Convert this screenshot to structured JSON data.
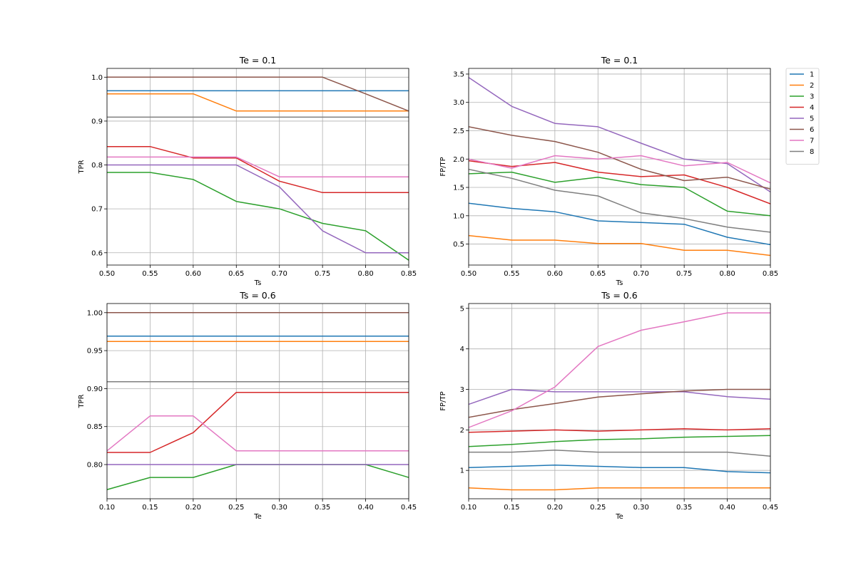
{
  "legend": {
    "position": "outside-right",
    "entries": [
      "1",
      "2",
      "3",
      "4",
      "5",
      "6",
      "7",
      "8"
    ]
  },
  "series_colors": [
    "#1f77b4",
    "#ff7f0e",
    "#2ca02c",
    "#d62728",
    "#9467bd",
    "#8c564b",
    "#e377c2",
    "#7f7f7f"
  ],
  "chart_data": [
    {
      "type": "line",
      "title": "Te = 0.1",
      "xlabel": "Ts",
      "ylabel": "TPR",
      "grid": true,
      "xlim": [
        0.5,
        0.85
      ],
      "ylim": [
        0.572,
        1.02
      ],
      "xticks": [
        "0.50",
        "0.55",
        "0.60",
        "0.65",
        "0.70",
        "0.75",
        "0.80",
        "0.85"
      ],
      "yticks": [
        "0.6",
        "0.7",
        "0.8",
        "0.9",
        "1.0"
      ],
      "x": [
        0.5,
        0.55,
        0.6,
        0.65,
        0.7,
        0.75,
        0.8,
        0.85
      ],
      "series": [
        {
          "name": "1",
          "values": [
            0.969,
            0.969,
            0.969,
            0.969,
            0.969,
            0.969,
            0.969,
            0.969
          ]
        },
        {
          "name": "2",
          "values": [
            0.962,
            0.962,
            0.962,
            0.923,
            0.923,
            0.923,
            0.923,
            0.923
          ]
        },
        {
          "name": "3",
          "values": [
            0.783,
            0.783,
            0.767,
            0.717,
            0.7,
            0.667,
            0.65,
            0.583
          ]
        },
        {
          "name": "4",
          "values": [
            0.842,
            0.842,
            0.816,
            0.816,
            0.763,
            0.737,
            0.737,
            0.737
          ]
        },
        {
          "name": "5",
          "values": [
            0.8,
            0.8,
            0.8,
            0.8,
            0.75,
            0.65,
            0.6,
            0.6
          ]
        },
        {
          "name": "6",
          "values": [
            1.0,
            1.0,
            1.0,
            1.0,
            1.0,
            1.0,
            0.962,
            0.923
          ]
        },
        {
          "name": "7",
          "values": [
            0.818,
            0.818,
            0.818,
            0.818,
            0.773,
            0.773,
            0.773,
            0.773
          ]
        },
        {
          "name": "8",
          "values": [
            0.909,
            0.909,
            0.909,
            0.909,
            0.909,
            0.909,
            0.909,
            0.909
          ]
        }
      ]
    },
    {
      "type": "line",
      "title": "Te = 0.1",
      "xlabel": "Ts",
      "ylabel": "FP/TP",
      "grid": true,
      "xlim": [
        0.5,
        0.85
      ],
      "ylim": [
        0.13,
        3.6
      ],
      "xticks": [
        "0.50",
        "0.55",
        "0.60",
        "0.65",
        "0.70",
        "0.75",
        "0.80",
        "0.85"
      ],
      "yticks": [
        "0.5",
        "1.0",
        "1.5",
        "2.0",
        "2.5",
        "3.0",
        "3.5"
      ],
      "x": [
        0.5,
        0.55,
        0.6,
        0.65,
        0.7,
        0.75,
        0.8,
        0.85
      ],
      "series": [
        {
          "name": "1",
          "values": [
            1.22,
            1.13,
            1.07,
            0.91,
            0.88,
            0.85,
            0.62,
            0.49
          ]
        },
        {
          "name": "2",
          "values": [
            0.65,
            0.57,
            0.57,
            0.51,
            0.51,
            0.39,
            0.39,
            0.3
          ]
        },
        {
          "name": "3",
          "values": [
            1.74,
            1.77,
            1.59,
            1.68,
            1.55,
            1.5,
            1.08,
            1.0
          ]
        },
        {
          "name": "4",
          "values": [
            1.97,
            1.87,
            1.94,
            1.77,
            1.69,
            1.72,
            1.5,
            1.21
          ]
        },
        {
          "name": "5",
          "values": [
            3.44,
            2.93,
            2.63,
            2.57,
            2.28,
            2.0,
            1.92,
            1.42
          ]
        },
        {
          "name": "6",
          "values": [
            2.57,
            2.42,
            2.31,
            2.12,
            1.82,
            1.62,
            1.68,
            1.47
          ]
        },
        {
          "name": "7",
          "values": [
            2.0,
            1.84,
            2.06,
            2.0,
            2.06,
            1.88,
            1.94,
            1.58
          ]
        },
        {
          "name": "8",
          "values": [
            1.82,
            1.66,
            1.45,
            1.35,
            1.05,
            0.95,
            0.8,
            0.71
          ]
        }
      ]
    },
    {
      "type": "line",
      "title": "Ts = 0.6",
      "xlabel": "Te",
      "ylabel": "TPR",
      "grid": true,
      "xlim": [
        0.1,
        0.45
      ],
      "ylim": [
        0.755,
        1.012
      ],
      "xticks": [
        "0.10",
        "0.15",
        "0.20",
        "0.25",
        "0.30",
        "0.35",
        "0.40",
        "0.45"
      ],
      "yticks": [
        "0.80",
        "0.85",
        "0.90",
        "0.95",
        "1.00"
      ],
      "x": [
        0.1,
        0.15,
        0.2,
        0.25,
        0.3,
        0.35,
        0.4,
        0.45
      ],
      "series": [
        {
          "name": "1",
          "values": [
            0.969,
            0.969,
            0.969,
            0.969,
            0.969,
            0.969,
            0.969,
            0.969
          ]
        },
        {
          "name": "2",
          "values": [
            0.962,
            0.962,
            0.962,
            0.962,
            0.962,
            0.962,
            0.962,
            0.962
          ]
        },
        {
          "name": "3",
          "values": [
            0.767,
            0.783,
            0.783,
            0.8,
            0.8,
            0.8,
            0.8,
            0.783
          ]
        },
        {
          "name": "4",
          "values": [
            0.816,
            0.816,
            0.842,
            0.895,
            0.895,
            0.895,
            0.895,
            0.895
          ]
        },
        {
          "name": "5",
          "values": [
            0.8,
            0.8,
            0.8,
            0.8,
            0.8,
            0.8,
            0.8,
            0.8
          ]
        },
        {
          "name": "6",
          "values": [
            1.0,
            1.0,
            1.0,
            1.0,
            1.0,
            1.0,
            1.0,
            1.0
          ]
        },
        {
          "name": "7",
          "values": [
            0.818,
            0.864,
            0.864,
            0.818,
            0.818,
            0.818,
            0.818,
            0.818
          ]
        },
        {
          "name": "8",
          "values": [
            0.909,
            0.909,
            0.909,
            0.909,
            0.909,
            0.909,
            0.909,
            0.909
          ]
        }
      ]
    },
    {
      "type": "line",
      "title": "Ts = 0.6",
      "xlabel": "Te",
      "ylabel": "FP/TP",
      "grid": true,
      "xlim": [
        0.1,
        0.45
      ],
      "ylim": [
        0.3,
        5.12
      ],
      "xticks": [
        "0.10",
        "0.15",
        "0.20",
        "0.25",
        "0.30",
        "0.35",
        "0.40",
        "0.45"
      ],
      "yticks": [
        "1",
        "2",
        "3",
        "4",
        "5"
      ],
      "x": [
        0.1,
        0.15,
        0.2,
        0.25,
        0.3,
        0.35,
        0.4,
        0.45
      ],
      "series": [
        {
          "name": "1",
          "values": [
            1.07,
            1.1,
            1.13,
            1.1,
            1.07,
            1.07,
            0.97,
            0.94
          ]
        },
        {
          "name": "2",
          "values": [
            0.57,
            0.52,
            0.52,
            0.57,
            0.57,
            0.57,
            0.57,
            0.57
          ]
        },
        {
          "name": "3",
          "values": [
            1.59,
            1.64,
            1.71,
            1.76,
            1.78,
            1.82,
            1.84,
            1.86
          ]
        },
        {
          "name": "4",
          "values": [
            1.94,
            1.97,
            2.0,
            1.97,
            2.0,
            2.03,
            2.0,
            2.03
          ]
        },
        {
          "name": "5",
          "values": [
            2.63,
            3.0,
            2.94,
            2.94,
            2.94,
            2.94,
            2.82,
            2.76
          ]
        },
        {
          "name": "6",
          "values": [
            2.31,
            2.5,
            2.65,
            2.81,
            2.89,
            2.96,
            3.0,
            3.0
          ]
        },
        {
          "name": "7",
          "values": [
            2.06,
            2.47,
            3.06,
            4.06,
            4.46,
            4.67,
            4.89,
            4.89
          ]
        },
        {
          "name": "8",
          "values": [
            1.45,
            1.45,
            1.5,
            1.45,
            1.45,
            1.45,
            1.45,
            1.35
          ]
        }
      ]
    }
  ]
}
